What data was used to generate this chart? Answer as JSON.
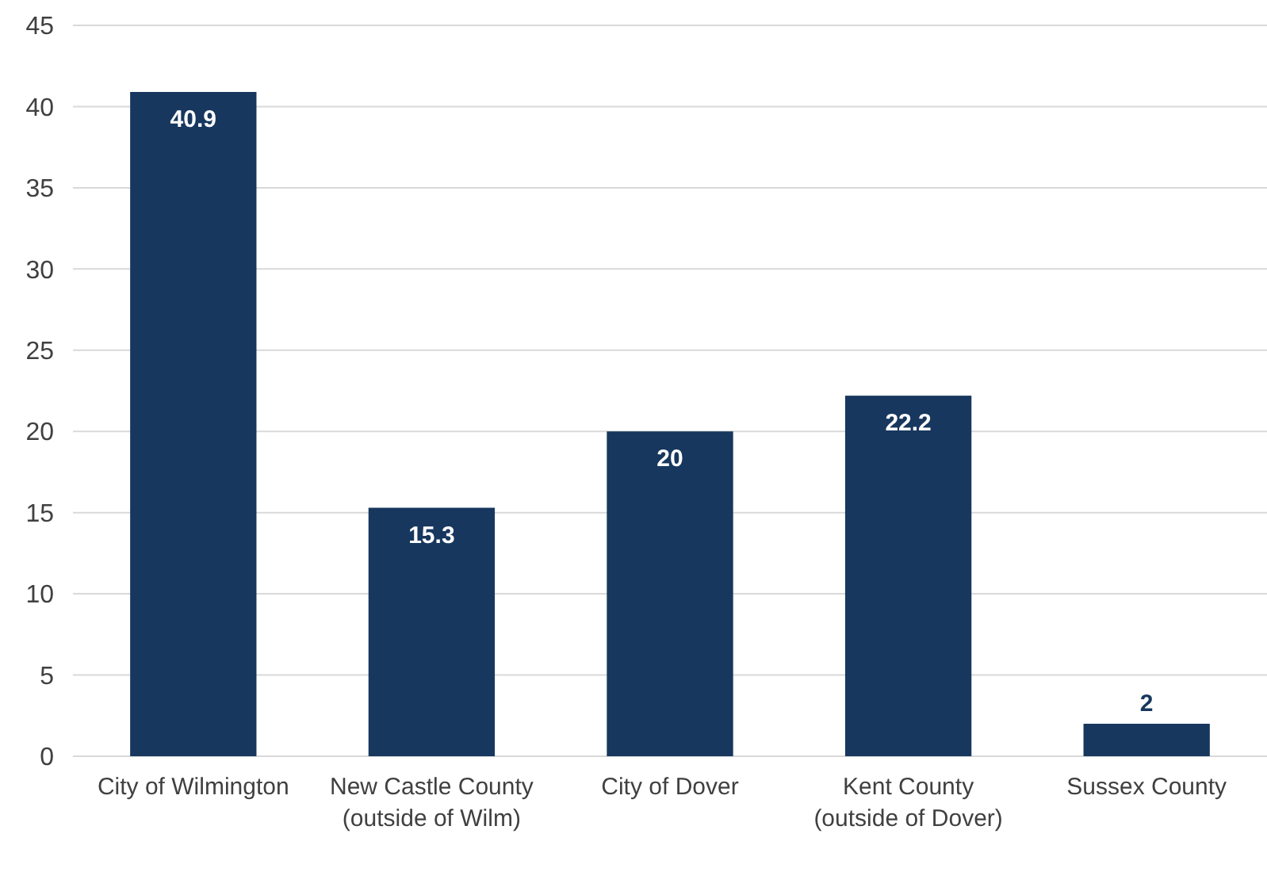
{
  "chart_data": {
    "type": "bar",
    "categories": [
      "City of Wilmington",
      "New Castle County (outside of Wilm)",
      "City of Dover",
      "Kent County (outside of Dover)",
      "Sussex County"
    ],
    "values": [
      40.9,
      15.3,
      20,
      22.2,
      2
    ],
    "color": "#17375e",
    "ylim": [
      0,
      45
    ],
    "yticks": [
      0,
      5,
      10,
      15,
      20,
      25,
      30,
      35,
      40,
      45
    ],
    "grid": "y",
    "data_labels": true
  }
}
